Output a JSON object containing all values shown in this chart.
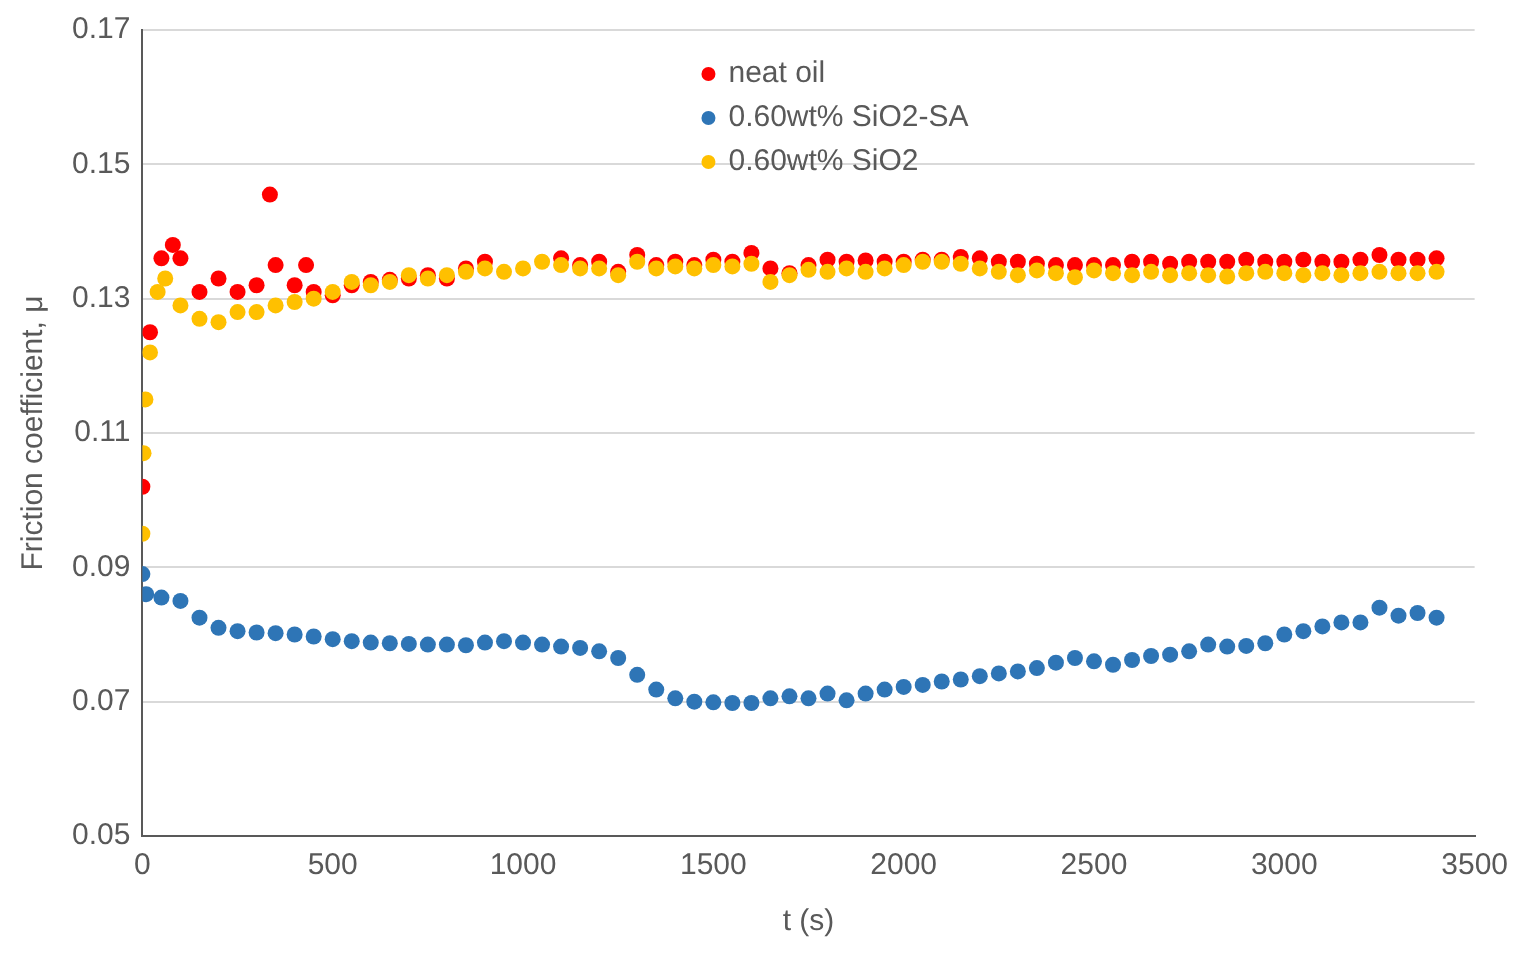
{
  "chart_data": {
    "type": "scatter",
    "xlabel": "t (s)",
    "ylabel": "Friction coefficient, μ",
    "xlim": [
      0,
      3500
    ],
    "xticks": [
      0,
      500,
      1000,
      1500,
      2000,
      2500,
      3000,
      3500
    ],
    "ylim": [
      0.05,
      0.17
    ],
    "yticks": [
      {
        "value": 0.05,
        "label": "0.05"
      },
      {
        "value": 0.07,
        "label": "0.07"
      },
      {
        "value": 0.09,
        "label": "0.09"
      },
      {
        "value": 0.11,
        "label": "0.11"
      },
      {
        "value": 0.13,
        "label": "0.13"
      },
      {
        "value": 0.15,
        "label": "0.15"
      },
      {
        "value": 0.17,
        "label": "0.17"
      }
    ],
    "grid": "y",
    "legend": "top",
    "marker": "circle",
    "series": [
      {
        "name": "neat oil",
        "color": "#ff0000",
        "x": [
          0,
          5,
          20,
          50,
          80,
          100,
          150,
          200,
          250,
          300,
          335,
          350,
          400,
          430,
          450,
          500,
          550,
          600,
          650,
          700,
          750,
          800,
          850,
          900,
          950,
          1000,
          1050,
          1100,
          1150,
          1200,
          1250,
          1300,
          1350,
          1400,
          1450,
          1500,
          1550,
          1600,
          1650,
          1700,
          1750,
          1800,
          1850,
          1900,
          1950,
          2000,
          2050,
          2100,
          2150,
          2200,
          2250,
          2300,
          2350,
          2400,
          2450,
          2500,
          2550,
          2600,
          2650,
          2700,
          2750,
          2800,
          2850,
          2900,
          2950,
          3000,
          3050,
          3100,
          3150,
          3200,
          3250,
          3300,
          3350,
          3400
        ],
        "values": [
          0.102,
          null,
          0.125,
          0.136,
          0.138,
          0.136,
          0.131,
          0.133,
          0.131,
          0.132,
          0.1455,
          0.135,
          0.132,
          0.135,
          0.131,
          0.1305,
          0.132,
          0.1325,
          0.1328,
          0.133,
          0.1335,
          0.133,
          0.1345,
          0.1355,
          null,
          null,
          null,
          0.136,
          0.135,
          0.1355,
          0.134,
          0.1365,
          0.135,
          0.1355,
          0.135,
          0.1358,
          0.1355,
          0.1368,
          0.1345,
          0.1338,
          0.135,
          0.1358,
          0.1355,
          0.1357,
          0.1355,
          0.1355,
          0.1358,
          0.1358,
          0.1362,
          0.136,
          0.1355,
          0.1355,
          0.1352,
          0.135,
          0.135,
          0.135,
          0.135,
          0.1355,
          0.1355,
          0.1352,
          0.1355,
          0.1355,
          0.1355,
          0.1358,
          0.1355,
          0.1355,
          0.1358,
          0.1355,
          0.1355,
          0.1358,
          0.1365,
          0.1358,
          0.1358,
          0.136
        ]
      },
      {
        "name": "0.60wt% SiO2-SA",
        "color": "#2e75b6",
        "x": [
          0,
          10,
          50,
          100,
          150,
          200,
          250,
          300,
          350,
          400,
          450,
          500,
          550,
          600,
          650,
          700,
          750,
          800,
          850,
          900,
          950,
          1000,
          1050,
          1100,
          1150,
          1200,
          1250,
          1300,
          1350,
          1400,
          1450,
          1500,
          1550,
          1600,
          1650,
          1700,
          1750,
          1800,
          1850,
          1900,
          1950,
          2000,
          2050,
          2100,
          2150,
          2200,
          2250,
          2300,
          2350,
          2400,
          2450,
          2500,
          2550,
          2600,
          2650,
          2700,
          2750,
          2800,
          2850,
          2900,
          2950,
          3000,
          3050,
          3100,
          3150,
          3200,
          3250,
          3300,
          3350,
          3400
        ],
        "values": [
          0.089,
          0.086,
          0.0855,
          0.085,
          0.0825,
          0.081,
          0.0805,
          0.0803,
          0.0802,
          0.08,
          0.0797,
          0.0793,
          0.079,
          0.0788,
          0.0787,
          0.0786,
          0.0785,
          0.0785,
          0.0784,
          0.0788,
          0.079,
          0.0788,
          0.0785,
          0.0782,
          0.078,
          0.0775,
          0.0765,
          0.074,
          0.0718,
          0.0705,
          0.07,
          0.0699,
          0.0698,
          0.0698,
          0.0705,
          0.0708,
          0.0705,
          0.0712,
          0.0702,
          0.0712,
          0.0718,
          0.0722,
          0.0725,
          0.073,
          0.0733,
          0.0738,
          0.0742,
          0.0745,
          0.075,
          0.0758,
          0.0765,
          0.076,
          0.0755,
          0.0762,
          0.0768,
          0.077,
          0.0775,
          0.0785,
          0.0782,
          0.0783,
          0.0787,
          0.08,
          0.0805,
          0.0812,
          0.0818,
          0.0818,
          0.084,
          0.0828,
          0.0832,
          0.0825
        ]
      },
      {
        "name": "0.60wt% SiO2",
        "color": "#ffc000",
        "x": [
          0,
          3,
          8,
          20,
          40,
          60,
          100,
          150,
          200,
          250,
          300,
          350,
          400,
          450,
          500,
          550,
          600,
          650,
          700,
          750,
          800,
          850,
          900,
          950,
          1000,
          1050,
          1100,
          1150,
          1200,
          1250,
          1300,
          1350,
          1400,
          1450,
          1500,
          1550,
          1600,
          1650,
          1700,
          1750,
          1800,
          1850,
          1900,
          1950,
          2000,
          2050,
          2100,
          2150,
          2200,
          2250,
          2300,
          2350,
          2400,
          2450,
          2500,
          2550,
          2600,
          2650,
          2700,
          2750,
          2800,
          2850,
          2900,
          2950,
          3000,
          3050,
          3100,
          3150,
          3200,
          3250,
          3300,
          3350,
          3400
        ],
        "values": [
          0.095,
          0.107,
          0.115,
          0.122,
          0.131,
          0.133,
          0.129,
          0.127,
          0.1265,
          0.128,
          0.128,
          0.129,
          0.1295,
          0.13,
          0.131,
          0.1325,
          0.132,
          0.1325,
          0.1335,
          0.133,
          0.1335,
          0.134,
          0.1345,
          0.134,
          0.1345,
          0.1355,
          0.135,
          0.1345,
          0.1345,
          0.1335,
          0.1355,
          0.1345,
          0.1348,
          0.1345,
          0.135,
          0.1348,
          0.1352,
          0.1325,
          0.1335,
          0.1343,
          0.134,
          0.1345,
          0.134,
          0.1345,
          0.135,
          0.1355,
          0.1355,
          0.1352,
          0.1345,
          0.134,
          0.1335,
          0.1342,
          0.1338,
          0.1332,
          0.1342,
          0.1338,
          0.1335,
          0.134,
          0.1335,
          0.1338,
          0.1335,
          0.1333,
          0.1338,
          0.134,
          0.1338,
          0.1335,
          0.1338,
          0.1335,
          0.1338,
          0.134,
          0.1338,
          0.1338,
          0.134
        ]
      }
    ]
  }
}
